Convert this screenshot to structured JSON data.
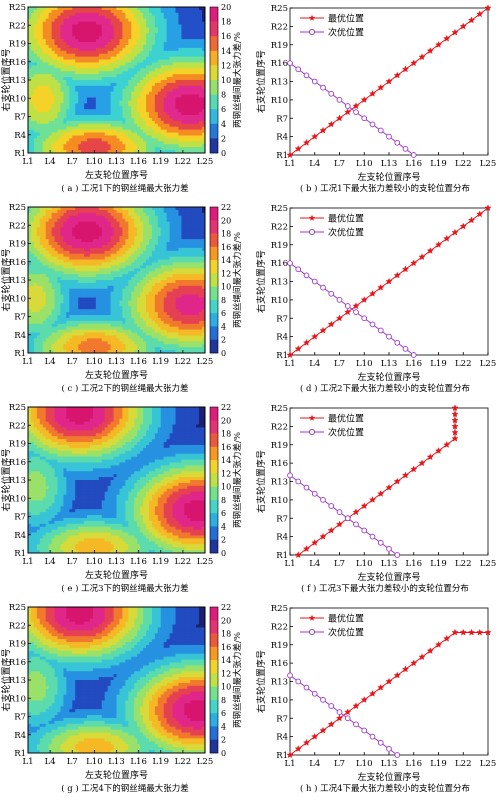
{
  "contour_panels": [
    {
      "caption": "( a ) 工况1下的钢丝绳最大张力差",
      "xlabel": "左支轮位置序号",
      "ylabel": "右支轮位置序号",
      "colorbar_label": "两钢丝绳间最大张力差/%",
      "colorbar_ticks": [
        "20",
        "18",
        "16",
        "14",
        "12",
        "10",
        "8",
        "6",
        "4",
        "2",
        "0"
      ],
      "colorbar_range": [
        0,
        20
      ],
      "x_ticks": [
        "L1",
        "L4",
        "L7",
        "L10",
        "L13",
        "L16",
        "L19",
        "L22",
        "L25"
      ],
      "y_ticks": [
        "R25",
        "R22",
        "R19",
        "R16",
        "R13",
        "R10",
        "R7",
        "R4",
        "R1"
      ],
      "hotspots": [
        {
          "x": 9,
          "y": 21,
          "value": 20
        },
        {
          "x": 23,
          "y": 9,
          "value": 20
        },
        {
          "x": 3,
          "y": 10,
          "value": 12
        },
        {
          "x": 10,
          "y": 2,
          "value": 16
        }
      ]
    },
    {
      "caption": "( c ) 工况2下的钢丝绳最大张力差",
      "xlabel": "左支轮位置序号",
      "ylabel": "右支轮位置序号",
      "colorbar_label": "两钢丝绳间最大张力差/%",
      "colorbar_ticks": [
        "22",
        "20",
        "18",
        "16",
        "14",
        "12",
        "10",
        "8",
        "6",
        "4",
        "2",
        "0"
      ],
      "colorbar_range": [
        0,
        22
      ],
      "x_ticks": [
        "L1",
        "L4",
        "L7",
        "L10",
        "L13",
        "L16",
        "L19",
        "L22",
        "L25"
      ],
      "y_ticks": [
        "R25",
        "R22",
        "R19",
        "R16",
        "R13",
        "R10",
        "R7",
        "R4",
        "R1"
      ],
      "hotspots": [
        {
          "x": 9,
          "y": 21,
          "value": 22
        },
        {
          "x": 23,
          "y": 9,
          "value": 20
        },
        {
          "x": 2,
          "y": 10,
          "value": 12
        },
        {
          "x": 10,
          "y": 2,
          "value": 16
        }
      ]
    },
    {
      "caption": "( e ) 工况3下的钢丝绳最大张力差",
      "xlabel": "左支轮位置序号",
      "ylabel": "右支轮位置序号",
      "colorbar_label": "两钢丝绳间最大张力差/%",
      "colorbar_ticks": [
        "22",
        "20",
        "18",
        "16",
        "14",
        "12",
        "10",
        "8",
        "6",
        "4",
        "2",
        "0"
      ],
      "colorbar_range": [
        0,
        22
      ],
      "x_ticks": [
        "L1",
        "L4",
        "L7",
        "L10",
        "L13",
        "L16",
        "L19",
        "L22",
        "L25"
      ],
      "y_ticks": [
        "R25",
        "R22",
        "R19",
        "R16",
        "R13",
        "R10",
        "R7",
        "R4",
        "R1"
      ],
      "hotspots": [
        {
          "x": 8,
          "y": 24,
          "value": 22
        },
        {
          "x": 24,
          "y": 8,
          "value": 22
        },
        {
          "x": 2,
          "y": 12,
          "value": 10
        },
        {
          "x": 10,
          "y": 2,
          "value": 14
        }
      ]
    },
    {
      "caption": "( g ) 工况4下的钢丝绳最大张力差",
      "xlabel": "左支轮位置序号",
      "ylabel": "右支轮位置序号",
      "colorbar_label": "两钢丝绳间最大张力差/%",
      "colorbar_ticks": [
        "22",
        "20",
        "18",
        "16",
        "14",
        "12",
        "10",
        "8",
        "6",
        "4",
        "2",
        "0"
      ],
      "colorbar_range": [
        0,
        22
      ],
      "x_ticks": [
        "L1",
        "L4",
        "L7",
        "L10",
        "L13",
        "L16",
        "L19",
        "L22",
        "L25"
      ],
      "y_ticks": [
        "R25",
        "R22",
        "R19",
        "R16",
        "R13",
        "R10",
        "R7",
        "R4",
        "R1"
      ],
      "hotspots": [
        {
          "x": 8,
          "y": 24,
          "value": 22
        },
        {
          "x": 24,
          "y": 8,
          "value": 22
        },
        {
          "x": 2,
          "y": 12,
          "value": 10
        },
        {
          "x": 10,
          "y": 2,
          "value": 14
        }
      ]
    }
  ],
  "line_panels": [
    {
      "caption": "( b ) 工况1下最大张力差较小的支轮位置分布",
      "xlabel": "左支轮位置序号",
      "ylabel": "右支轮位置序号",
      "x_ticks": [
        "L1",
        "L4",
        "L7",
        "L10",
        "L13",
        "L16",
        "L19",
        "L22",
        "L25"
      ],
      "y_ticks": [
        "R25",
        "R22",
        "R19",
        "R16",
        "R13",
        "R10",
        "R7",
        "R4",
        "R1"
      ],
      "legend": [
        "最优位置",
        "次优位置"
      ],
      "series": [
        {
          "name": "最优位置",
          "color": "#e8151b",
          "marker": "star",
          "x": [
            1,
            2,
            3,
            4,
            5,
            6,
            7,
            8,
            9,
            10,
            11,
            12,
            13,
            14,
            15,
            16,
            17,
            18,
            19,
            20,
            21,
            22,
            23,
            24,
            25
          ],
          "y": [
            1,
            2,
            3,
            4,
            5,
            6,
            7,
            8,
            9,
            10,
            11,
            12,
            13,
            14,
            15,
            16,
            17,
            18,
            19,
            20,
            21,
            22,
            23,
            24,
            25
          ]
        },
        {
          "name": "次优位置",
          "color": "#9b36c9",
          "marker": "circle",
          "x": [
            1,
            2,
            3,
            4,
            5,
            6,
            7,
            8,
            9,
            10,
            11,
            12,
            13,
            14,
            15,
            16
          ],
          "y": [
            16,
            15,
            14,
            13,
            12,
            11,
            10,
            9,
            8,
            7,
            6,
            5,
            4,
            3,
            2,
            1
          ]
        }
      ]
    },
    {
      "caption": "( d ) 工况2下最大张力差较小的支轮位置分布",
      "xlabel": "左支轮位置序号",
      "ylabel": "右支轮位置序号",
      "x_ticks": [
        "L1",
        "L4",
        "L7",
        "L10",
        "L13",
        "L16",
        "L19",
        "L22",
        "L25"
      ],
      "y_ticks": [
        "R25",
        "R22",
        "R19",
        "R16",
        "R13",
        "R10",
        "R7",
        "R4",
        "R1"
      ],
      "legend": [
        "最优位置",
        "次优位置"
      ],
      "series": [
        {
          "name": "最优位置",
          "color": "#e8151b",
          "marker": "star",
          "x": [
            1,
            2,
            3,
            4,
            5,
            6,
            7,
            8,
            9,
            10,
            11,
            12,
            13,
            14,
            15,
            16,
            17,
            18,
            19,
            20,
            21,
            22,
            23,
            24,
            25
          ],
          "y": [
            1,
            2,
            3,
            4,
            5,
            6,
            7,
            8,
            9,
            10,
            11,
            12,
            13,
            14,
            15,
            16,
            17,
            18,
            19,
            20,
            21,
            22,
            23,
            24,
            25
          ]
        },
        {
          "name": "次优位置",
          "color": "#9b36c9",
          "marker": "circle",
          "x": [
            1,
            2,
            3,
            4,
            5,
            6,
            7,
            8,
            9,
            10,
            11,
            12,
            13,
            14,
            15,
            16
          ],
          "y": [
            16,
            15,
            14,
            13,
            12,
            11,
            10,
            9,
            8,
            7,
            6,
            5,
            4,
            3,
            2,
            1
          ]
        }
      ]
    },
    {
      "caption": "( f ) 工况3下最大张力差较小的支轮位置分布",
      "xlabel": "左支轮位置序号",
      "ylabel": "右支轮位置序号",
      "x_ticks": [
        "L1",
        "L4",
        "L7",
        "L10",
        "L13",
        "L16",
        "L19",
        "L22",
        "L25"
      ],
      "y_ticks": [
        "R25",
        "R22",
        "R19",
        "R16",
        "R13",
        "R10",
        "R7",
        "R4",
        "R1"
      ],
      "legend": [
        "最优位置",
        "次优位置"
      ],
      "series": [
        {
          "name": "最优位置",
          "color": "#e8151b",
          "marker": "star",
          "x": [
            2,
            3,
            4,
            5,
            6,
            7,
            8,
            9,
            10,
            11,
            12,
            13,
            14,
            15,
            16,
            17,
            18,
            19,
            20,
            21,
            21,
            21,
            21,
            21,
            21
          ],
          "y": [
            1,
            2,
            3,
            4,
            5,
            6,
            7,
            8,
            9,
            10,
            11,
            12,
            13,
            14,
            15,
            16,
            17,
            18,
            19,
            20,
            21,
            22,
            23,
            24,
            25
          ]
        },
        {
          "name": "次优位置",
          "color": "#9b36c9",
          "marker": "circle",
          "x": [
            1,
            2,
            3,
            4,
            5,
            6,
            7,
            8,
            9,
            10,
            11,
            12,
            13,
            14
          ],
          "y": [
            14,
            13,
            12,
            11,
            10,
            9,
            8,
            7,
            6,
            5,
            4,
            3,
            2,
            1
          ]
        }
      ]
    },
    {
      "caption": "( h ) 工况4下最大张力差较小的支轮位置分布",
      "xlabel": "左支轮位置序号",
      "ylabel": "右支轮位置序号",
      "x_ticks": [
        "L1",
        "L4",
        "L7",
        "L10",
        "L13",
        "L16",
        "L19",
        "L22",
        "L25"
      ],
      "y_ticks": [
        "R25",
        "R22",
        "R19",
        "R16",
        "R13",
        "R10",
        "R7",
        "R4",
        "R1"
      ],
      "legend": [
        "最优位置",
        "次优位置"
      ],
      "series": [
        {
          "name": "最优位置",
          "color": "#e8151b",
          "marker": "star",
          "x": [
            1,
            2,
            3,
            4,
            5,
            6,
            7,
            8,
            9,
            10,
            11,
            12,
            13,
            14,
            15,
            16,
            17,
            18,
            19,
            20,
            21,
            22,
            23,
            24,
            25
          ],
          "y": [
            1,
            2,
            3,
            4,
            5,
            6,
            7,
            8,
            9,
            10,
            11,
            12,
            13,
            14,
            15,
            16,
            17,
            18,
            19,
            20,
            21,
            21,
            21,
            21,
            21
          ]
        },
        {
          "name": "次优位置",
          "color": "#9b36c9",
          "marker": "circle",
          "x": [
            1,
            2,
            3,
            4,
            5,
            6,
            7,
            8,
            9,
            10,
            11,
            12,
            13,
            14
          ],
          "y": [
            14,
            13,
            12,
            11,
            10,
            9,
            8,
            7,
            6,
            5,
            4,
            3,
            2,
            1
          ]
        }
      ]
    }
  ],
  "chart_data": [
    {
      "type": "heatmap",
      "panel": "a",
      "title": "( a ) 工况1下的钢丝绳最大张力差",
      "xlabel": "左支轮位置序号",
      "ylabel": "右支轮位置序号",
      "zlabel": "两钢丝绳间最大张力差/%",
      "zlim": [
        0,
        20
      ]
    },
    {
      "type": "line",
      "panel": "b",
      "title": "( b ) 工况1下最大张力差较小的支轮位置分布",
      "xlabel": "左支轮位置序号",
      "ylabel": "右支轮位置序号",
      "xlim": [
        1,
        25
      ],
      "ylim": [
        1,
        25
      ]
    },
    {
      "type": "heatmap",
      "panel": "c",
      "title": "( c ) 工况2下的钢丝绳最大张力差",
      "xlabel": "左支轮位置序号",
      "ylabel": "右支轮位置序号",
      "zlabel": "两钢丝绳间最大张力差/%",
      "zlim": [
        0,
        22
      ]
    },
    {
      "type": "line",
      "panel": "d",
      "title": "( d ) 工况2下最大张力差较小的支轮位置分布",
      "xlabel": "左支轮位置序号",
      "ylabel": "右支轮位置序号",
      "xlim": [
        1,
        25
      ],
      "ylim": [
        1,
        25
      ]
    },
    {
      "type": "heatmap",
      "panel": "e",
      "title": "( e ) 工况3下的钢丝绳最大张力差",
      "xlabel": "左支轮位置序号",
      "ylabel": "右支轮位置序号",
      "zlabel": "两钢丝绳间最大张力差/%",
      "zlim": [
        0,
        22
      ]
    },
    {
      "type": "line",
      "panel": "f",
      "title": "( f ) 工况3下最大张力差较小的支轮位置分布",
      "xlabel": "左支轮位置序号",
      "ylabel": "右支轮位置序号",
      "xlim": [
        1,
        25
      ],
      "ylim": [
        1,
        25
      ]
    },
    {
      "type": "heatmap",
      "panel": "g",
      "title": "( g ) 工况4下的钢丝绳最大张力差",
      "xlabel": "左支轮位置序号",
      "ylabel": "右支轮位置序号",
      "zlabel": "两钢丝绳间最大张力差/%",
      "zlim": [
        0,
        22
      ]
    },
    {
      "type": "line",
      "panel": "h",
      "title": "( h ) 工况4下最大张力差较小的支轮位置分布",
      "xlabel": "左支轮位置序号",
      "ylabel": "右支轮位置序号",
      "xlim": [
        1,
        25
      ],
      "ylim": [
        1,
        25
      ]
    }
  ]
}
